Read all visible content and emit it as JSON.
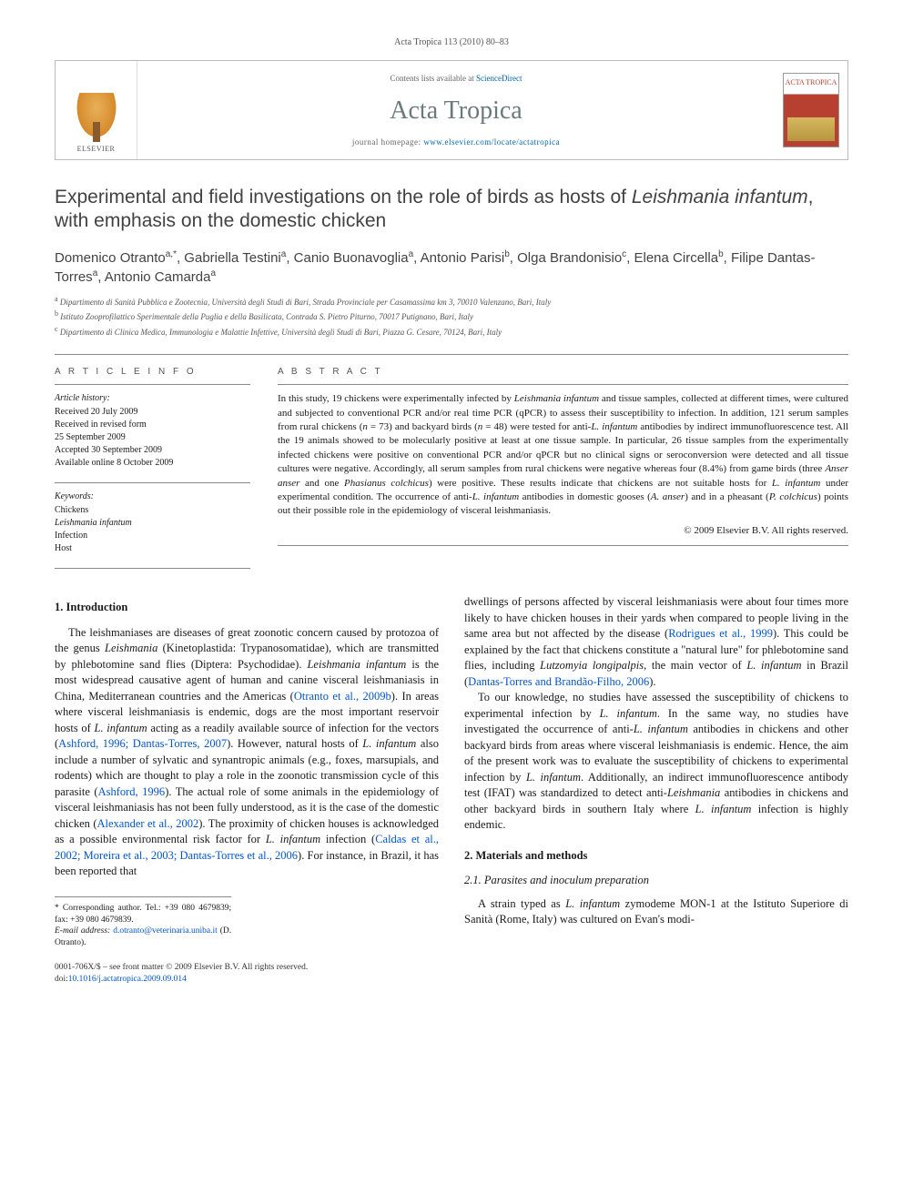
{
  "page_header": "Acta Tropica 113 (2010) 80–83",
  "masthead": {
    "contents_prefix": "Contents lists available at ",
    "contents_link": "ScienceDirect",
    "journal_name": "Acta Tropica",
    "homepage_prefix": "journal homepage: ",
    "homepage_url": "www.elsevier.com/locate/actatropica",
    "publisher": "ELSEVIER",
    "cover_label": "ACTA TROPICA"
  },
  "title_part1": "Experimental and field investigations on the role of birds as hosts of ",
  "title_species": "Leishmania infantum",
  "title_part2": ", with emphasis on the domestic chicken",
  "authors_html": "Domenico Otranto<sup>a,*</sup>, Gabriella Testini<sup>a</sup>, Canio Buonavoglia<sup>a</sup>, Antonio Parisi<sup>b</sup>, Olga Brandonisio<sup>c</sup>, Elena Circella<sup>b</sup>, Filipe Dantas-Torres<sup>a</sup>, Antonio Camarda<sup>a</sup>",
  "affiliations": [
    {
      "sup": "a",
      "text": "Dipartimento di Sanità Pubblica e Zootecnia, Università degli Studi di Bari, Strada Provinciale per Casamassima km 3, 70010 Valenzano, Bari, Italy"
    },
    {
      "sup": "b",
      "text": "Istituto Zooprofilattico Sperimentale della Puglia e della Basilicata, Contrada S. Pietro Piturno, 70017 Putignano, Bari, Italy"
    },
    {
      "sup": "c",
      "text": "Dipartimento di Clinica Medica, Immunologia e Malattie Infettive, Università degli Studi di Bari, Piazza G. Cesare, 70124, Bari, Italy"
    }
  ],
  "article_info_heading": "A R T I C L E   I N F O",
  "history": {
    "label": "Article history:",
    "received": "Received 20 July 2009",
    "revised1": "Received in revised form",
    "revised2": "25 September 2009",
    "accepted": "Accepted 30 September 2009",
    "online": "Available online 8 October 2009"
  },
  "keywords": {
    "label": "Keywords:",
    "items": [
      "Chickens",
      "Leishmania infantum",
      "Infection",
      "Host"
    ]
  },
  "abstract_heading": "A B S T R A C T",
  "abstract": "In this study, 19 chickens were experimentally infected by Leishmania infantum and tissue samples, collected at different times, were cultured and subjected to conventional PCR and/or real time PCR (qPCR) to assess their susceptibility to infection. In addition, 121 serum samples from rural chickens (n = 73) and backyard birds (n = 48) were tested for anti-L. infantum antibodies by indirect immunofluorescence test. All the 19 animals showed to be molecularly positive at least at one tissue sample. In particular, 26 tissue samples from the experimentally infected chickens were positive on conventional PCR and/or qPCR but no clinical signs or seroconversion were detected and all tissue cultures were negative. Accordingly, all serum samples from rural chickens were negative whereas four (8.4%) from game birds (three Anser anser and one Phasianus colchicus) were positive. These results indicate that chickens are not suitable hosts for L. infantum under experimental condition. The occurrence of anti-L. infantum antibodies in domestic gooses (A. anser) and in a pheasant (P. colchicus) points out their possible role in the epidemiology of visceral leishmaniasis.",
  "copyright": "© 2009 Elsevier B.V. All rights reserved.",
  "sections": {
    "s1_heading": "1.  Introduction",
    "s1_p1": "The leishmaniases are diseases of great zoonotic concern caused by protozoa of the genus Leishmania (Kinetoplastida: Trypanosomatidae), which are transmitted by phlebotomine sand flies (Diptera: Psychodidae). Leishmania infantum is the most widespread causative agent of human and canine visceral leishmaniasis in China, Mediterranean countries and the Americas (Otranto et al., 2009b). In areas where visceral leishmaniasis is endemic, dogs are the most important reservoir hosts of L. infantum acting as a readily available source of infection for the vectors (Ashford, 1996; Dantas-Torres, 2007). However, natural hosts of L. infantum also include a number of sylvatic and synantropic animals (e.g., foxes, marsupials, and rodents) which are thought to play a role in the zoonotic transmission cycle of this parasite (Ashford, 1996). The actual role of some animals in the epidemiology of visceral leishmaniasis has not been fully understood, as it is the case of the domestic chicken (Alexander et al., 2002). The proximity of chicken houses is acknowledged as a possible environmental risk factor for L. infantum infection (Caldas et al., 2002; Moreira et al., 2003; Dantas-Torres et al., 2006). For instance, in Brazil, it has been reported that",
    "s1_p1b": "dwellings of persons affected by visceral leishmaniasis were about four times more likely to have chicken houses in their yards when compared to people living in the same area but not affected by the disease (Rodrigues et al., 1999). This could be explained by the fact that chickens constitute a \"natural lure\" for phlebotomine sand flies, including Lutzomyia longipalpis, the main vector of L. infantum in Brazil (Dantas-Torres and Brandão-Filho, 2006).",
    "s1_p2": "To our knowledge, no studies have assessed the susceptibility of chickens to experimental infection by L. infantum. In the same way, no studies have investigated the occurrence of anti-L. infantum antibodies in chickens and other backyard birds from areas where visceral leishmaniasis is endemic. Hence, the aim of the present work was to evaluate the susceptibility of chickens to experimental infection by L. infantum. Additionally, an indirect immunofluorescence antibody test (IFAT) was standardized to detect anti-Leishmania antibodies in chickens and other backyard birds in southern Italy where L. infantum infection is highly endemic.",
    "s2_heading": "2.  Materials and methods",
    "s2_1_heading": "2.1.  Parasites and inoculum preparation",
    "s2_1_p1": "A strain typed as L. infantum zymodeme MON-1 at the Istituto Superiore di Sanità (Rome, Italy) was cultured on Evan's modi-"
  },
  "footnotes": {
    "corr": "* Corresponding author. Tel.: +39 080 4679839; fax: +39 080 4679839.",
    "email_label": "E-mail address: ",
    "email": "d.otranto@veterinaria.uniba.it",
    "email_suffix": " (D. Otranto)."
  },
  "footer": {
    "line1": "0001-706X/$ – see front matter © 2009 Elsevier B.V. All rights reserved.",
    "doi_label": "doi:",
    "doi": "10.1016/j.actatropica.2009.09.014"
  }
}
